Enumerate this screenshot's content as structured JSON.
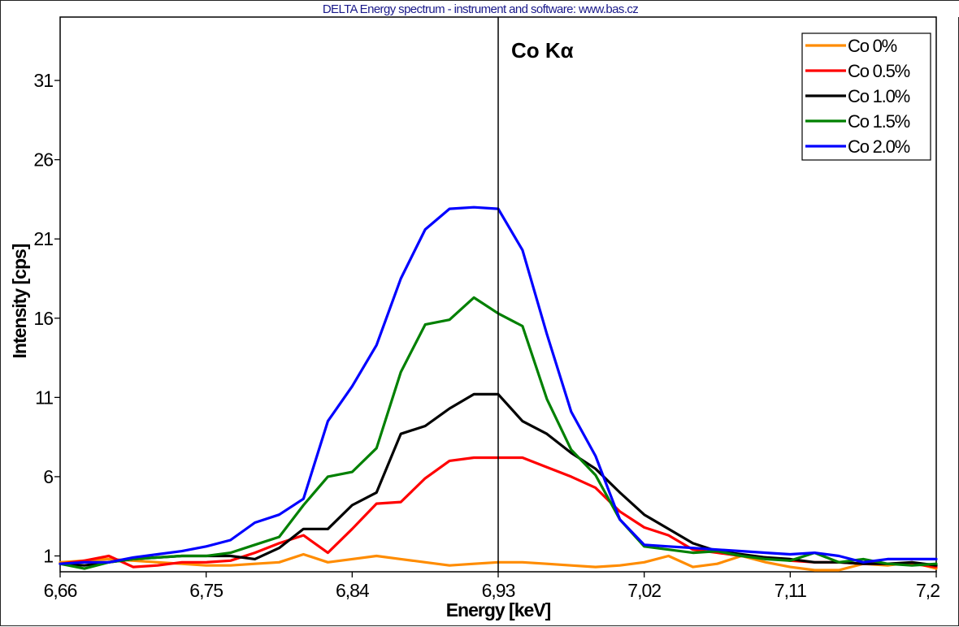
{
  "window": {
    "title": "DELTA Energy spectrum - instrument and software: www.bas.cz"
  },
  "chart_data": {
    "type": "line",
    "title": "DELTA Energy spectrum - instrument and software: www.bas.cz",
    "annotation": "Co Kα",
    "annotation_line_x": 6.93,
    "xlabel": "Energy [keV]",
    "ylabel": "Intensity [cps]",
    "xlim": [
      6.66,
      7.2
    ],
    "ylim": [
      0,
      35
    ],
    "x_ticks": [
      6.66,
      6.75,
      6.84,
      6.93,
      7.02,
      7.11,
      7.2
    ],
    "x_tick_labels": [
      "6,66",
      "6,75",
      "6,84",
      "6,93",
      "7,02",
      "7,11",
      "7,2"
    ],
    "y_ticks": [
      1,
      6,
      11,
      16,
      21,
      26,
      31
    ],
    "y_tick_labels": [
      "1",
      "6",
      "11",
      "16",
      "21",
      "26",
      "31"
    ],
    "grid": false,
    "legend_position": "top-right",
    "x": [
      6.66,
      6.675,
      6.69,
      6.705,
      6.72,
      6.735,
      6.75,
      6.765,
      6.78,
      6.795,
      6.81,
      6.825,
      6.84,
      6.855,
      6.87,
      6.885,
      6.9,
      6.915,
      6.93,
      6.945,
      6.96,
      6.975,
      6.99,
      7.005,
      7.02,
      7.035,
      7.05,
      7.065,
      7.08,
      7.095,
      7.11,
      7.125,
      7.14,
      7.155,
      7.17,
      7.185,
      7.2
    ],
    "series": [
      {
        "name": "Co 0%",
        "color": "#ff8c00",
        "values": [
          0.6,
          0.7,
          0.8,
          0.7,
          0.6,
          0.5,
          0.4,
          0.4,
          0.5,
          0.6,
          1.1,
          0.6,
          0.8,
          1.0,
          0.8,
          0.6,
          0.4,
          0.5,
          0.6,
          0.6,
          0.5,
          0.4,
          0.3,
          0.4,
          0.6,
          1.0,
          0.3,
          0.5,
          1.0,
          0.6,
          0.3,
          0.1,
          0.1,
          0.5,
          0.4,
          0.6,
          0.2
        ]
      },
      {
        "name": "Co 0.5%",
        "color": "#ff0000",
        "values": [
          0.5,
          0.7,
          1.0,
          0.3,
          0.4,
          0.6,
          0.6,
          0.7,
          1.2,
          1.8,
          2.3,
          1.2,
          2.7,
          4.3,
          4.4,
          5.9,
          7.0,
          7.2,
          7.2,
          7.2,
          6.6,
          6.0,
          5.3,
          3.8,
          2.8,
          2.3,
          1.4,
          1.2,
          1.0,
          0.9,
          0.7,
          0.6,
          0.6,
          0.5,
          0.5,
          0.5,
          0.3
        ]
      },
      {
        "name": "Co 1.0%",
        "color": "#000000",
        "values": [
          0.5,
          0.4,
          0.6,
          0.8,
          0.9,
          1.0,
          1.0,
          1.0,
          0.8,
          1.5,
          2.7,
          2.7,
          4.2,
          5.0,
          8.7,
          9.2,
          10.3,
          11.2,
          11.2,
          9.5,
          8.7,
          7.5,
          6.5,
          5.0,
          3.6,
          2.7,
          1.8,
          1.3,
          1.1,
          0.9,
          0.8,
          0.6,
          0.6,
          0.5,
          0.5,
          0.6,
          0.4
        ]
      },
      {
        "name": "Co 1.5%",
        "color": "#008000",
        "values": [
          0.5,
          0.2,
          0.6,
          0.8,
          0.9,
          1.0,
          1.0,
          1.2,
          1.7,
          2.2,
          4.2,
          6.0,
          6.3,
          7.8,
          12.6,
          15.6,
          15.9,
          17.3,
          16.3,
          15.5,
          10.9,
          7.7,
          6.1,
          3.3,
          1.6,
          1.4,
          1.2,
          1.3,
          1.0,
          0.8,
          0.7,
          1.2,
          0.6,
          0.8,
          0.5,
          0.4,
          0.5
        ]
      },
      {
        "name": "Co 2.0%",
        "color": "#0000ff",
        "values": [
          0.5,
          0.6,
          0.6,
          0.9,
          1.1,
          1.3,
          1.6,
          2.0,
          3.1,
          3.6,
          4.6,
          9.5,
          11.7,
          14.3,
          18.5,
          21.6,
          22.9,
          23.0,
          22.9,
          20.3,
          15.0,
          10.1,
          7.3,
          3.3,
          1.7,
          1.6,
          1.5,
          1.4,
          1.3,
          1.2,
          1.1,
          1.2,
          1.0,
          0.6,
          0.8,
          0.8,
          0.8
        ]
      }
    ]
  }
}
